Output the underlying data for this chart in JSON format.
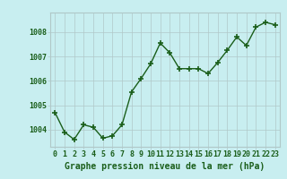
{
  "x": [
    0,
    1,
    2,
    3,
    4,
    5,
    6,
    7,
    8,
    9,
    10,
    11,
    12,
    13,
    14,
    15,
    16,
    17,
    18,
    19,
    20,
    21,
    22,
    23
  ],
  "y": [
    1004.7,
    1003.9,
    1003.6,
    1004.2,
    1004.1,
    1003.65,
    1003.75,
    1004.2,
    1005.55,
    1006.1,
    1006.7,
    1007.55,
    1007.15,
    1006.5,
    1006.5,
    1006.5,
    1006.3,
    1006.75,
    1007.25,
    1007.8,
    1007.45,
    1008.2,
    1008.4,
    1008.3
  ],
  "line_color": "#1a5e1a",
  "marker": "s",
  "marker_size": 2.5,
  "linewidth": 1.0,
  "background_color": "#c8eef0",
  "grid_color": "#b0c8c8",
  "xlabel": "Graphe pression niveau de la mer (hPa)",
  "xlabel_color": "#1a5e1a",
  "xlabel_fontsize": 7,
  "tick_color": "#1a5e1a",
  "tick_fontsize": 6,
  "ylim": [
    1003.3,
    1008.8
  ],
  "xlim": [
    -0.5,
    23.5
  ],
  "yticks": [
    1004,
    1005,
    1006,
    1007,
    1008
  ],
  "xtick_labels": [
    "0",
    "1",
    "2",
    "3",
    "4",
    "5",
    "6",
    "7",
    "8",
    "9",
    "10",
    "11",
    "12",
    "13",
    "14",
    "15",
    "16",
    "17",
    "18",
    "19",
    "20",
    "21",
    "22",
    "23"
  ]
}
